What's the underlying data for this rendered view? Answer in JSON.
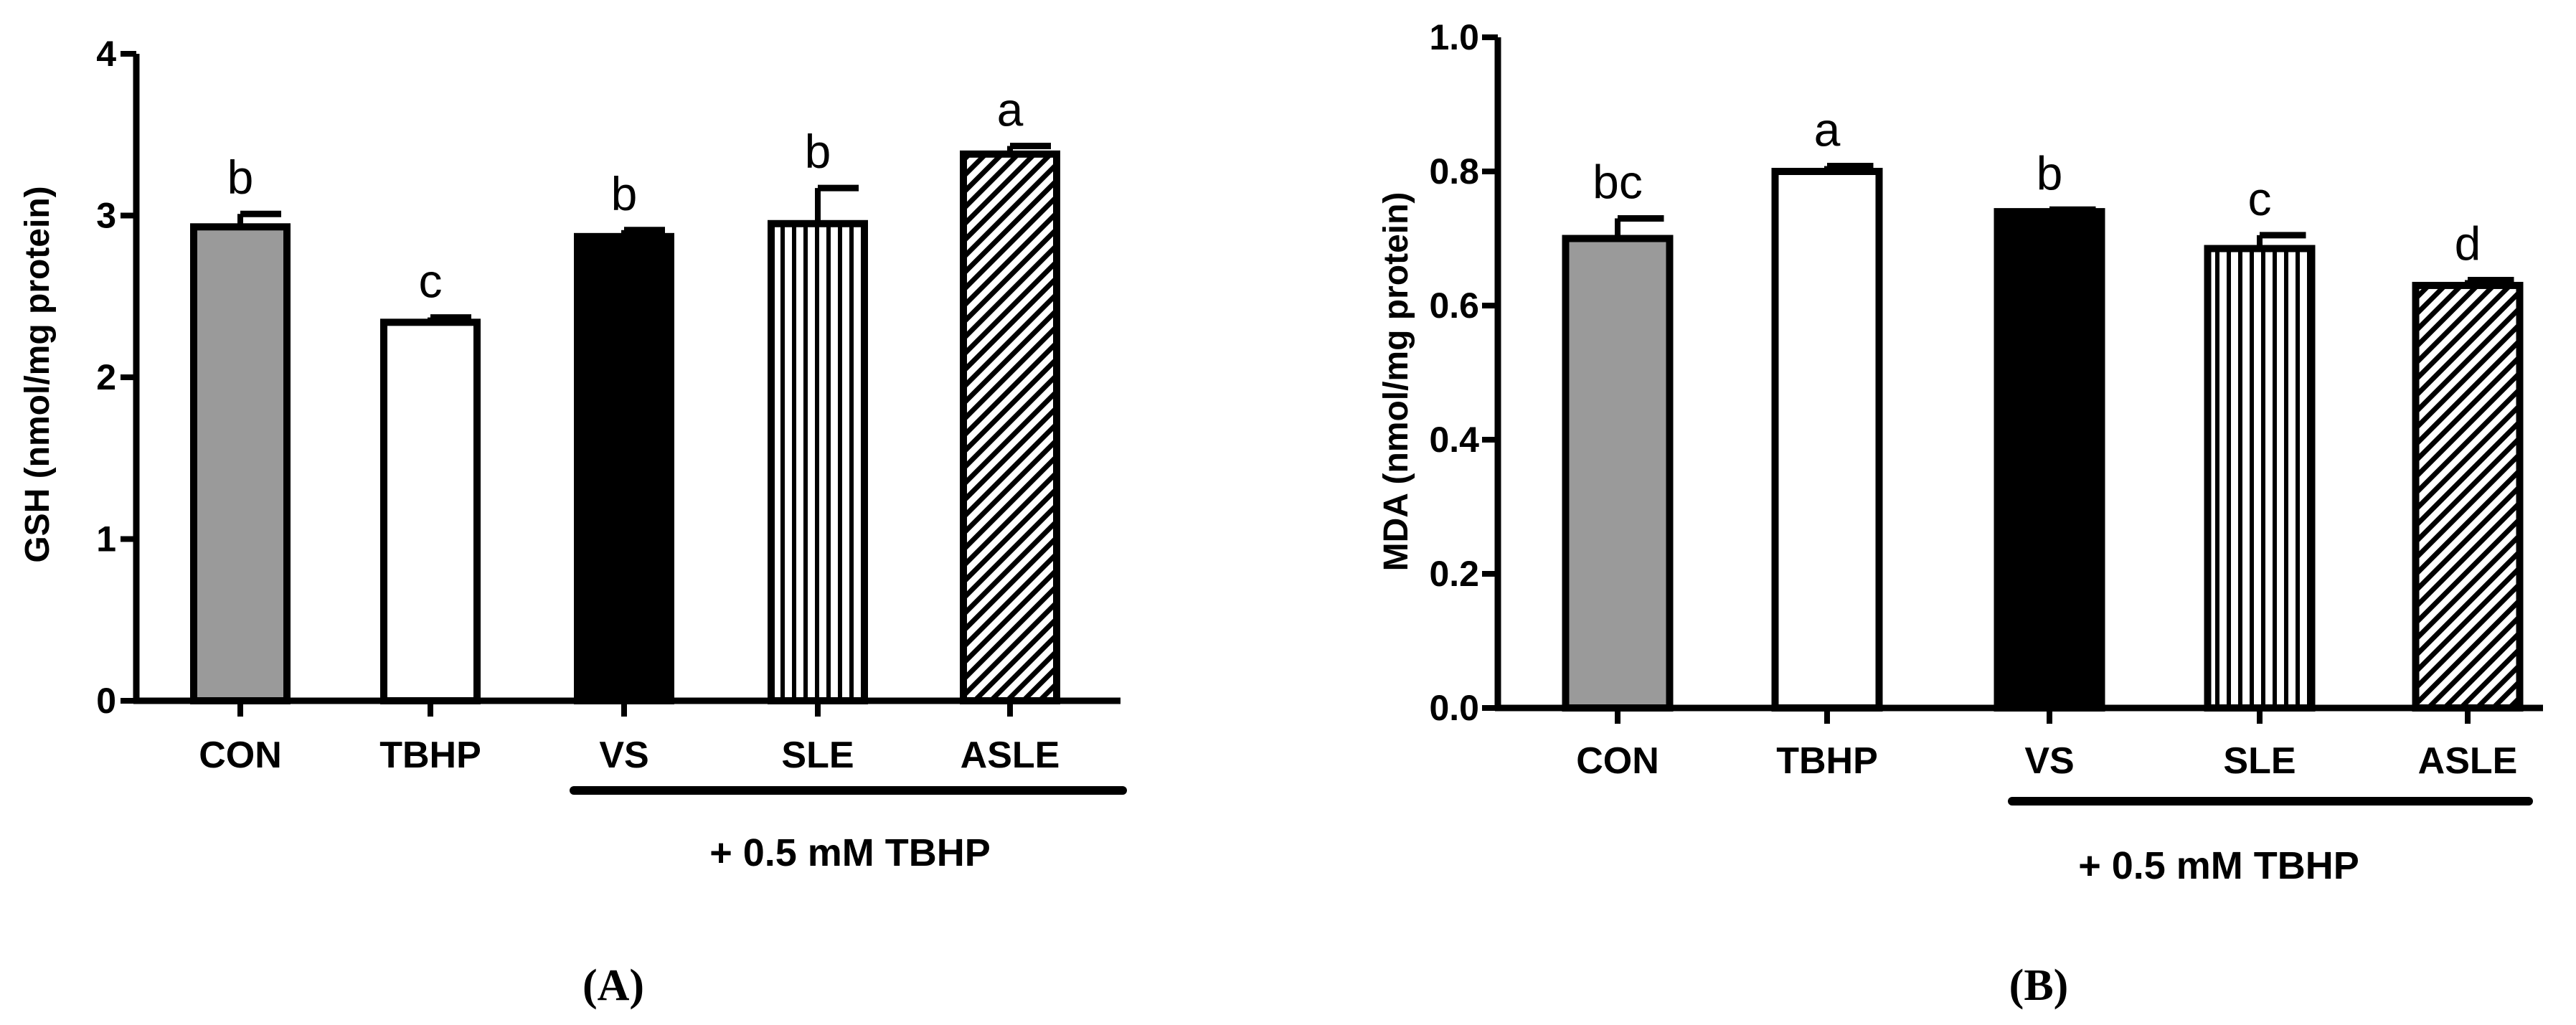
{
  "chart_data": [
    {
      "type": "bar",
      "panel_label": "(A)",
      "ylabel": "GSH (nmol/mg protein)",
      "ylim": [
        0,
        4
      ],
      "yticks": [
        "0",
        "1",
        "2",
        "3",
        "4"
      ],
      "categories": [
        "CON",
        "TBHP",
        "VS",
        "SLE",
        "ASLE"
      ],
      "values": [
        2.93,
        2.34,
        2.87,
        2.95,
        3.38
      ],
      "errors": [
        0.08,
        0.03,
        0.04,
        0.22,
        0.05
      ],
      "significance": [
        "b",
        "c",
        "b",
        "b",
        "a"
      ],
      "fills": [
        "gray",
        "white",
        "black",
        "vertical-lines",
        "diagonal-hatch"
      ],
      "treatment_label": "+ 0.5 mM TBHP",
      "treatment_groups": [
        "VS",
        "SLE",
        "ASLE"
      ]
    },
    {
      "type": "bar",
      "panel_label": "(B)",
      "ylabel": "MDA (nmol/mg protein)",
      "ylim": [
        0,
        1.0
      ],
      "yticks": [
        "0.0",
        "0.2",
        "0.4",
        "0.6",
        "0.8",
        "1.0"
      ],
      "categories": [
        "CON",
        "TBHP",
        "VS",
        "SLE",
        "ASLE"
      ],
      "values": [
        0.7,
        0.8,
        0.74,
        0.685,
        0.63
      ],
      "errors": [
        0.03,
        0.008,
        0.003,
        0.02,
        0.008
      ],
      "significance": [
        "bc",
        "a",
        "b",
        "c",
        "d"
      ],
      "fills": [
        "gray",
        "white",
        "black",
        "vertical-lines",
        "diagonal-hatch"
      ],
      "treatment_label": "+ 0.5 mM TBHP",
      "treatment_groups": [
        "VS",
        "SLE",
        "ASLE"
      ]
    }
  ],
  "colors": {
    "gray": "#9a9a9a",
    "black": "#000000",
    "white": "#ffffff"
  }
}
